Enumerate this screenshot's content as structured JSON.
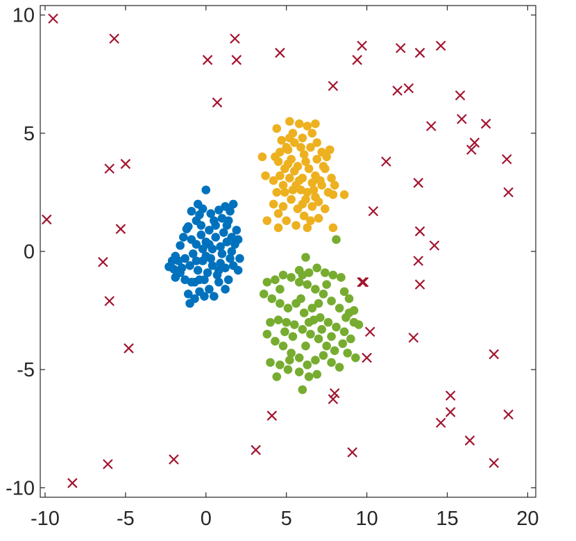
{
  "chart_data": {
    "type": "scatter",
    "title": "",
    "xlabel": "",
    "ylabel": "",
    "xlim": [
      -10.3,
      20.5
    ],
    "ylim": [
      -10.4,
      10.4
    ],
    "xticks": [
      -10,
      -5,
      0,
      5,
      10,
      15,
      20
    ],
    "yticks": [
      -10,
      -5,
      0,
      5,
      10
    ],
    "xtick_labels": [
      "-10",
      "-5",
      "0",
      "5",
      "10",
      "15",
      "20"
    ],
    "ytick_labels": [
      "-10",
      "-5",
      "0",
      "5",
      "10"
    ],
    "grid": false,
    "legend": "none",
    "series": [
      {
        "marker": "circle",
        "color": "#0072bd",
        "points": [
          [
            0.0,
            2.6
          ],
          [
            -1.1,
            1.05
          ],
          [
            -0.9,
            1.7
          ],
          [
            -0.6,
            1.3
          ],
          [
            -0.4,
            1.55
          ],
          [
            -0.2,
            1.8
          ],
          [
            -0.5,
            2.0
          ],
          [
            0.3,
            1.6
          ],
          [
            0.5,
            1.3
          ],
          [
            0.8,
            1.75
          ],
          [
            1.0,
            1.4
          ],
          [
            1.2,
            1.9
          ],
          [
            1.5,
            1.7
          ],
          [
            1.7,
            2.0
          ],
          [
            1.3,
            1.1
          ],
          [
            1.9,
            0.9
          ],
          [
            2.0,
            0.5
          ],
          [
            1.6,
            0.0
          ],
          [
            2.1,
            -0.3
          ],
          [
            2.0,
            -0.8
          ],
          [
            1.7,
            -0.6
          ],
          [
            1.4,
            -1.2
          ],
          [
            1.2,
            -1.6
          ],
          [
            0.8,
            -1.3
          ],
          [
            0.5,
            -1.9
          ],
          [
            0.2,
            -1.6
          ],
          [
            -0.1,
            -1.9
          ],
          [
            -0.4,
            -1.7
          ],
          [
            -0.7,
            -2.0
          ],
          [
            -1.0,
            -2.2
          ],
          [
            -1.1,
            -1.8
          ],
          [
            -0.9,
            -1.3
          ],
          [
            -1.3,
            -1.2
          ],
          [
            -1.6,
            -0.9
          ],
          [
            -1.9,
            -1.1
          ],
          [
            -2.0,
            -0.75
          ],
          [
            -2.3,
            -0.65
          ],
          [
            -2.1,
            -0.4
          ],
          [
            -1.9,
            -0.2
          ],
          [
            -1.6,
            0.25
          ],
          [
            -1.3,
            -0.3
          ],
          [
            -1.0,
            -0.6
          ],
          [
            -0.8,
            -0.1
          ],
          [
            -0.6,
            0.3
          ],
          [
            -0.3,
            0.7
          ],
          [
            0.0,
            0.4
          ],
          [
            0.2,
            0.9
          ],
          [
            0.4,
            0.1
          ],
          [
            0.6,
            0.6
          ],
          [
            0.9,
            0.2
          ],
          [
            1.1,
            0.8
          ],
          [
            1.3,
            0.4
          ],
          [
            1.5,
            -0.3
          ],
          [
            1.2,
            -0.7
          ],
          [
            0.9,
            -0.5
          ],
          [
            0.7,
            -1.0
          ],
          [
            0.4,
            -0.6
          ],
          [
            0.1,
            -0.9
          ],
          [
            -0.2,
            -0.4
          ],
          [
            -0.5,
            -0.8
          ],
          [
            -0.7,
            -1.3
          ],
          [
            -0.4,
            -1.2
          ],
          [
            -0.1,
            -1.2
          ],
          [
            0.3,
            -0.3
          ],
          [
            -0.2,
            0.1
          ],
          [
            -1.4,
            0.6
          ],
          [
            -1.2,
            0.95
          ],
          [
            -0.9,
            0.5
          ],
          [
            -0.3,
            1.1
          ],
          [
            0.6,
            1.1
          ],
          [
            1.0,
            -0.1
          ],
          [
            1.6,
            0.6
          ],
          [
            1.8,
            0.3
          ],
          [
            -1.7,
            -0.4
          ],
          [
            -1.5,
            -0.7
          ],
          [
            0.0,
            -0.2
          ],
          [
            0.2,
            0.3
          ],
          [
            -0.6,
            -0.4
          ],
          [
            0.8,
            -0.8
          ],
          [
            1.4,
            1.3
          ]
        ]
      },
      {
        "marker": "circle",
        "color": "#edb120",
        "points": [
          [
            5.2,
            5.5
          ],
          [
            4.4,
            5.2
          ],
          [
            4.7,
            4.7
          ],
          [
            5.1,
            4.3
          ],
          [
            5.4,
            5.0
          ],
          [
            5.8,
            5.4
          ],
          [
            6.3,
            5.3
          ],
          [
            6.8,
            5.4
          ],
          [
            6.6,
            5.0
          ],
          [
            6.0,
            4.8
          ],
          [
            5.5,
            4.6
          ],
          [
            5.0,
            4.4
          ],
          [
            4.6,
            4.2
          ],
          [
            4.5,
            3.8
          ],
          [
            4.9,
            3.5
          ],
          [
            5.3,
            3.9
          ],
          [
            5.7,
            3.6
          ],
          [
            6.1,
            4.1
          ],
          [
            6.5,
            4.4
          ],
          [
            6.9,
            4.6
          ],
          [
            7.2,
            4.2
          ],
          [
            7.5,
            4.0
          ],
          [
            7.7,
            4.3
          ],
          [
            7.4,
            3.5
          ],
          [
            7.8,
            3.1
          ],
          [
            8.0,
            2.8
          ],
          [
            7.6,
            2.5
          ],
          [
            7.2,
            2.8
          ],
          [
            6.8,
            3.2
          ],
          [
            6.4,
            3.5
          ],
          [
            6.0,
            3.1
          ],
          [
            5.6,
            2.8
          ],
          [
            5.2,
            3.1
          ],
          [
            4.8,
            2.8
          ],
          [
            4.4,
            2.5
          ],
          [
            4.2,
            3.0
          ],
          [
            3.7,
            3.2
          ],
          [
            3.5,
            4.0
          ],
          [
            4.2,
            2.0
          ],
          [
            4.5,
            1.6
          ],
          [
            4.8,
            1.9
          ],
          [
            5.3,
            2.2
          ],
          [
            5.7,
            1.8
          ],
          [
            6.2,
            2.2
          ],
          [
            6.6,
            1.9
          ],
          [
            7.0,
            2.1
          ],
          [
            7.4,
            1.8
          ],
          [
            7.9,
            2.4
          ],
          [
            8.6,
            2.4
          ],
          [
            5.0,
            1.3
          ],
          [
            5.6,
            1.1
          ],
          [
            6.1,
            1.5
          ],
          [
            6.5,
            1.3
          ],
          [
            7.0,
            1.4
          ],
          [
            6.3,
            1.0
          ],
          [
            3.8,
            1.3
          ],
          [
            4.5,
            1.0
          ],
          [
            7.9,
            1.0
          ],
          [
            5.9,
            2.6
          ],
          [
            6.7,
            2.6
          ],
          [
            5.5,
            3.4
          ],
          [
            6.2,
            3.8
          ],
          [
            6.9,
            3.9
          ],
          [
            7.1,
            3.0
          ],
          [
            5.8,
            3.0
          ],
          [
            4.9,
            2.5
          ],
          [
            5.4,
            2.6
          ],
          [
            6.6,
            2.9
          ],
          [
            6.3,
            2.5
          ],
          [
            7.3,
            3.6
          ],
          [
            5.9,
            4.4
          ],
          [
            4.6,
            3.2
          ],
          [
            5.1,
            3.7
          ],
          [
            6.0,
            2.0
          ],
          [
            6.8,
            2.3
          ],
          [
            5.2,
            4.8
          ],
          [
            4.3,
            4.0
          ]
        ]
      },
      {
        "marker": "circle",
        "color": "#77ac30",
        "points": [
          [
            8.1,
            0.5
          ],
          [
            6.2,
            -0.25
          ],
          [
            5.8,
            -0.8
          ],
          [
            6.4,
            -0.9
          ],
          [
            6.9,
            -0.7
          ],
          [
            7.4,
            -0.9
          ],
          [
            7.9,
            -1.0
          ],
          [
            8.4,
            -1.1
          ],
          [
            8.6,
            -1.7
          ],
          [
            8.9,
            -2.0
          ],
          [
            9.2,
            -2.5
          ],
          [
            8.7,
            -2.8
          ],
          [
            8.3,
            -2.4
          ],
          [
            7.8,
            -2.1
          ],
          [
            7.3,
            -1.8
          ],
          [
            6.8,
            -1.6
          ],
          [
            6.3,
            -1.4
          ],
          [
            5.8,
            -1.3
          ],
          [
            5.3,
            -1.1
          ],
          [
            4.8,
            -1.0
          ],
          [
            4.3,
            -1.2
          ],
          [
            3.8,
            -1.3
          ],
          [
            3.6,
            -1.8
          ],
          [
            4.1,
            -2.0
          ],
          [
            4.6,
            -2.2
          ],
          [
            5.1,
            -2.4
          ],
          [
            5.6,
            -2.2
          ],
          [
            6.1,
            -2.6
          ],
          [
            6.6,
            -2.4
          ],
          [
            7.1,
            -2.8
          ],
          [
            7.6,
            -3.0
          ],
          [
            8.1,
            -3.2
          ],
          [
            8.6,
            -3.4
          ],
          [
            9.2,
            -3.0
          ],
          [
            9.5,
            -3.1
          ],
          [
            9.0,
            -3.7
          ],
          [
            8.5,
            -3.9
          ],
          [
            8.0,
            -4.2
          ],
          [
            7.5,
            -4.0
          ],
          [
            7.0,
            -3.7
          ],
          [
            6.5,
            -3.5
          ],
          [
            6.0,
            -3.3
          ],
          [
            5.5,
            -3.1
          ],
          [
            5.0,
            -3.0
          ],
          [
            4.5,
            -2.9
          ],
          [
            4.0,
            -3.0
          ],
          [
            3.8,
            -3.5
          ],
          [
            4.3,
            -3.8
          ],
          [
            4.8,
            -4.0
          ],
          [
            5.3,
            -4.3
          ],
          [
            5.8,
            -4.5
          ],
          [
            6.3,
            -4.8
          ],
          [
            6.8,
            -4.6
          ],
          [
            7.3,
            -4.4
          ],
          [
            7.8,
            -4.7
          ],
          [
            8.3,
            -4.9
          ],
          [
            9.3,
            -4.5
          ],
          [
            8.8,
            -4.3
          ],
          [
            4.0,
            -4.7
          ],
          [
            4.6,
            -4.8
          ],
          [
            5.1,
            -5.0
          ],
          [
            5.8,
            -5.1
          ],
          [
            6.4,
            -5.3
          ],
          [
            6.9,
            -5.2
          ],
          [
            4.4,
            -5.3
          ],
          [
            6.0,
            -5.85
          ],
          [
            5.4,
            -3.6
          ],
          [
            6.2,
            -4.0
          ],
          [
            7.2,
            -3.3
          ],
          [
            6.7,
            -2.9
          ],
          [
            5.9,
            -2.0
          ],
          [
            7.5,
            -1.4
          ],
          [
            4.9,
            -3.4
          ],
          [
            6.4,
            -3.0
          ],
          [
            7.8,
            -3.6
          ],
          [
            5.2,
            -4.6
          ],
          [
            7.0,
            -2.2
          ],
          [
            6.0,
            -1.0
          ],
          [
            4.6,
            -1.6
          ],
          [
            8.9,
            -2.6
          ]
        ]
      },
      {
        "marker": "x",
        "color": "#a2142f",
        "points": [
          [
            -9.5,
            9.85
          ],
          [
            -5.7,
            9.0
          ],
          [
            1.8,
            9.0
          ],
          [
            0.1,
            8.1
          ],
          [
            1.9,
            8.1
          ],
          [
            4.6,
            8.4
          ],
          [
            9.7,
            8.7
          ],
          [
            9.4,
            8.1
          ],
          [
            12.1,
            8.6
          ],
          [
            13.3,
            8.4
          ],
          [
            14.6,
            8.7
          ],
          [
            7.9,
            7.0
          ],
          [
            11.9,
            6.8
          ],
          [
            12.6,
            6.9
          ],
          [
            0.7,
            6.3
          ],
          [
            15.8,
            6.6
          ],
          [
            15.9,
            5.6
          ],
          [
            14.0,
            5.3
          ],
          [
            17.4,
            5.4
          ],
          [
            16.7,
            4.6
          ],
          [
            16.5,
            4.3
          ],
          [
            11.2,
            3.8
          ],
          [
            18.7,
            3.9
          ],
          [
            -6.0,
            3.5
          ],
          [
            -5.0,
            3.7
          ],
          [
            13.2,
            2.9
          ],
          [
            18.8,
            2.5
          ],
          [
            10.4,
            1.7
          ],
          [
            -9.9,
            1.35
          ],
          [
            -5.3,
            0.95
          ],
          [
            13.3,
            0.85
          ],
          [
            14.2,
            0.25
          ],
          [
            -6.4,
            -0.45
          ],
          [
            13.2,
            -0.4
          ],
          [
            9.8,
            -1.3
          ],
          [
            9.7,
            -1.3
          ],
          [
            13.3,
            -1.4
          ],
          [
            -6.0,
            -2.1
          ],
          [
            10.2,
            -3.4
          ],
          [
            12.9,
            -3.65
          ],
          [
            -4.8,
            -4.1
          ],
          [
            10.0,
            -4.5
          ],
          [
            17.9,
            -4.35
          ],
          [
            15.2,
            -6.1
          ],
          [
            8.0,
            -6.0
          ],
          [
            7.9,
            -6.25
          ],
          [
            15.2,
            -6.8
          ],
          [
            14.6,
            -7.25
          ],
          [
            4.1,
            -6.95
          ],
          [
            18.8,
            -6.9
          ],
          [
            16.4,
            -8.0
          ],
          [
            3.1,
            -8.4
          ],
          [
            9.1,
            -8.5
          ],
          [
            -2.0,
            -8.8
          ],
          [
            -6.1,
            -9.0
          ],
          [
            17.9,
            -8.95
          ],
          [
            -8.3,
            -9.8
          ]
        ]
      }
    ]
  }
}
